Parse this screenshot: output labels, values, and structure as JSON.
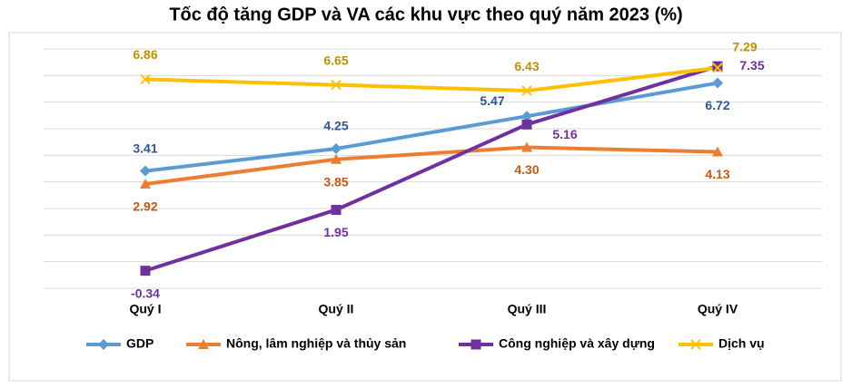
{
  "chart_data": {
    "type": "line",
    "title": "Tốc độ tăng GDP và VA các khu vực theo quý năm 2023 (%)",
    "categories": [
      "Quý I",
      "Quý II",
      "Quý III",
      "Quý IV"
    ],
    "series": [
      {
        "name": "GDP",
        "color": "#5b9bd5",
        "marker": "diamond",
        "values": [
          3.41,
          4.25,
          5.47,
          6.72
        ]
      },
      {
        "name": "Nông, lâm nghiệp và thủy sản",
        "color": "#ed7d31",
        "marker": "triangle",
        "values": [
          2.92,
          3.85,
          4.3,
          4.13
        ]
      },
      {
        "name": "Công nghiệp và xây dựng",
        "color": "#7030a0",
        "marker": "square",
        "values": [
          -0.34,
          1.95,
          5.16,
          7.35
        ]
      },
      {
        "name": "Dịch vụ",
        "color": "#ffc000",
        "marker": "x",
        "values": [
          6.86,
          6.65,
          6.43,
          7.29
        ]
      }
    ],
    "value_labels": [
      [
        "3.41",
        "4.25",
        "5.47",
        "6.72"
      ],
      [
        "2.92",
        "3.85",
        "4.30",
        "4.13"
      ],
      [
        "-0.34",
        "1.95",
        "5.16",
        "7.35"
      ],
      [
        "6.86",
        "6.65",
        "6.43",
        "7.29"
      ]
    ],
    "ylim": [
      -1,
      8
    ],
    "yticks": [
      -1,
      0,
      1,
      2,
      3,
      4,
      5,
      6,
      7,
      8
    ],
    "grid": true,
    "legend": "bottom"
  }
}
